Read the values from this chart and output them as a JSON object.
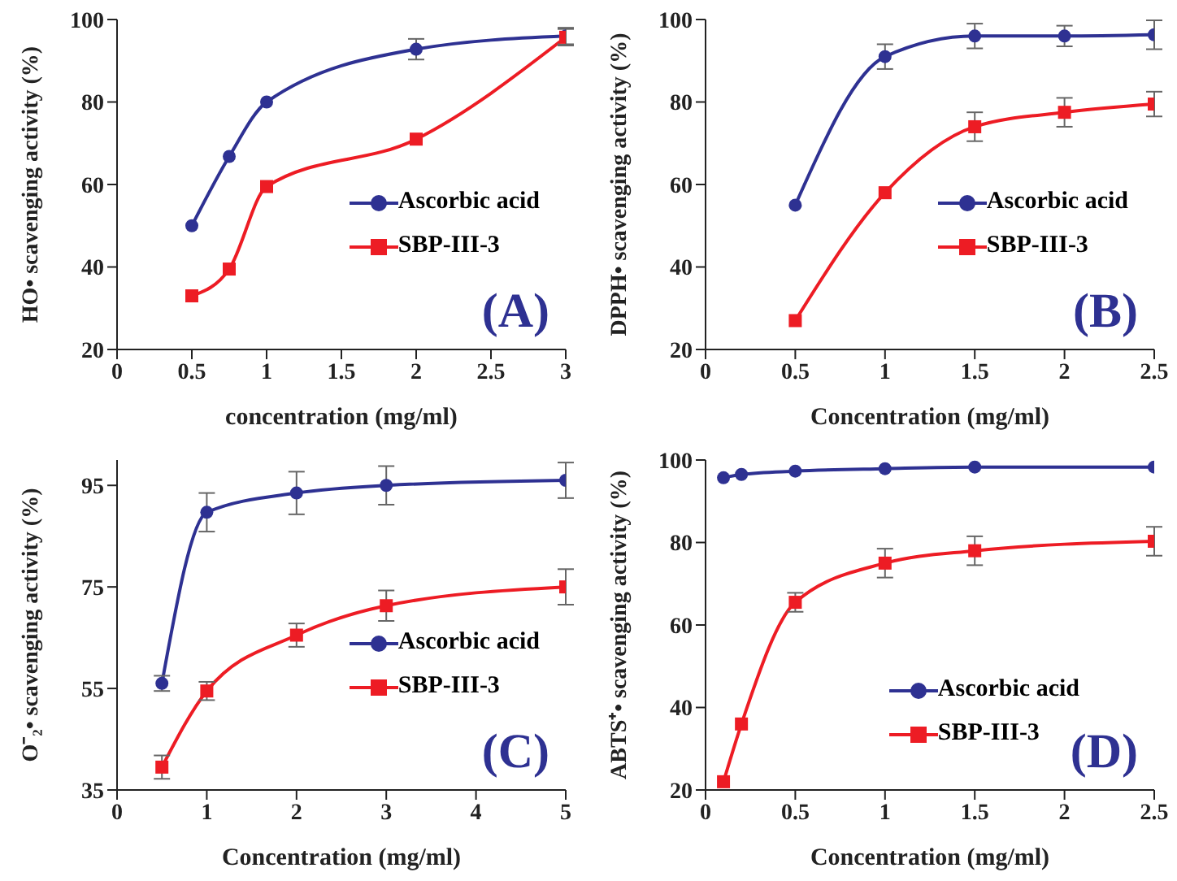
{
  "chart_data": [
    {
      "type": "line",
      "xlabel": "concentration (mg/ml)",
      "ylabel": "HO• scavenging activity (%)",
      "annotations": [
        "(A)"
      ],
      "xlim": [
        0,
        3
      ],
      "xticks": [
        0,
        0.5,
        1,
        1.5,
        2,
        2.5,
        3
      ],
      "ylim": [
        20,
        100
      ],
      "yticks": [
        20,
        40,
        60,
        80,
        100
      ],
      "grid": false,
      "legend": "right",
      "series": [
        {
          "name": "Ascorbic acid",
          "color": "#2e3192",
          "marker": "circle",
          "x": [
            0.5,
            0.75,
            1,
            2,
            3
          ],
          "values": [
            50,
            66.8,
            80,
            92.8,
            96
          ],
          "errors": [
            null,
            null,
            null,
            2.5,
            2
          ]
        },
        {
          "name": "SBP-III-3",
          "color": "#ed1c24",
          "marker": "square",
          "x": [
            0.5,
            0.75,
            1,
            2,
            3
          ],
          "values": [
            33,
            39.5,
            59.5,
            71,
            95.7
          ],
          "errors": [
            null,
            null,
            null,
            null,
            2
          ]
        }
      ]
    },
    {
      "type": "line",
      "xlabel": "Concentration (mg/ml)",
      "ylabel": "DPPH• scavenging activity (%)",
      "annotations": [
        "(B)"
      ],
      "xlim": [
        0,
        2.5
      ],
      "xticks": [
        0,
        0.5,
        1,
        1.5,
        2,
        2.5
      ],
      "ylim": [
        20,
        100
      ],
      "yticks": [
        20,
        40,
        60,
        80,
        100
      ],
      "grid": false,
      "legend": "right",
      "series": [
        {
          "name": "Ascorbic acid",
          "color": "#2e3192",
          "marker": "circle",
          "x": [
            0.5,
            1,
            1.5,
            2,
            2.5
          ],
          "values": [
            55,
            91,
            96,
            96,
            96.3
          ],
          "errors": [
            null,
            3,
            3,
            2.5,
            3.5
          ]
        },
        {
          "name": "SBP-III-3",
          "color": "#ed1c24",
          "marker": "square",
          "x": [
            0.5,
            1,
            1.5,
            2,
            2.5
          ],
          "values": [
            27,
            58,
            74,
            77.5,
            79.5
          ],
          "errors": [
            null,
            null,
            3.5,
            3.5,
            3
          ]
        }
      ]
    },
    {
      "type": "line",
      "xlabel": "Concentration (mg/ml)",
      "ylabel": "O⁻₂• scavenging activity (%)",
      "annotations": [
        "(C)"
      ],
      "xlim": [
        0,
        5
      ],
      "xticks": [
        0,
        1,
        2,
        3,
        4,
        5
      ],
      "ylim": [
        35,
        100
      ],
      "yticks": [
        35,
        55,
        75,
        95
      ],
      "grid": false,
      "legend": "right",
      "series": [
        {
          "name": "Ascorbic acid",
          "color": "#2e3192",
          "marker": "circle",
          "x": [
            0.5,
            1,
            2,
            3,
            5
          ],
          "values": [
            56,
            89.7,
            93.5,
            95,
            96
          ],
          "errors": [
            1.5,
            3.8,
            4.2,
            3.8,
            3.5
          ]
        },
        {
          "name": "SBP-III-3",
          "color": "#ed1c24",
          "marker": "square",
          "x": [
            0.5,
            1,
            2,
            3,
            5
          ],
          "values": [
            39.5,
            54.5,
            65.5,
            71.3,
            75
          ],
          "errors": [
            2.3,
            1.8,
            2.3,
            3,
            3.5
          ]
        }
      ]
    },
    {
      "type": "line",
      "xlabel": "Concentration (mg/ml)",
      "ylabel": "ABTS⁺• scavenging activity (%)",
      "annotations": [
        "(D)"
      ],
      "xlim": [
        0,
        2.5
      ],
      "xticks": [
        0,
        0.5,
        1,
        1.5,
        2,
        2.5
      ],
      "ylim": [
        20,
        100
      ],
      "yticks": [
        20,
        40,
        60,
        80,
        100
      ],
      "grid": false,
      "legend": "bottom right",
      "series": [
        {
          "name": "Ascorbic acid",
          "color": "#2e3192",
          "marker": "circle",
          "x": [
            0.1,
            0.2,
            0.5,
            1,
            1.5,
            2.5
          ],
          "values": [
            95.7,
            96.5,
            97.3,
            97.9,
            98.3,
            98.3
          ]
        },
        {
          "name": "SBP-III-3",
          "color": "#ed1c24",
          "marker": "square",
          "x": [
            0.1,
            0.2,
            0.5,
            1,
            1.5,
            2.5
          ],
          "values": [
            22,
            36,
            65.5,
            75,
            78,
            80.3
          ],
          "errors": [
            null,
            null,
            2.3,
            3.5,
            3.5,
            3.5
          ]
        }
      ]
    }
  ]
}
